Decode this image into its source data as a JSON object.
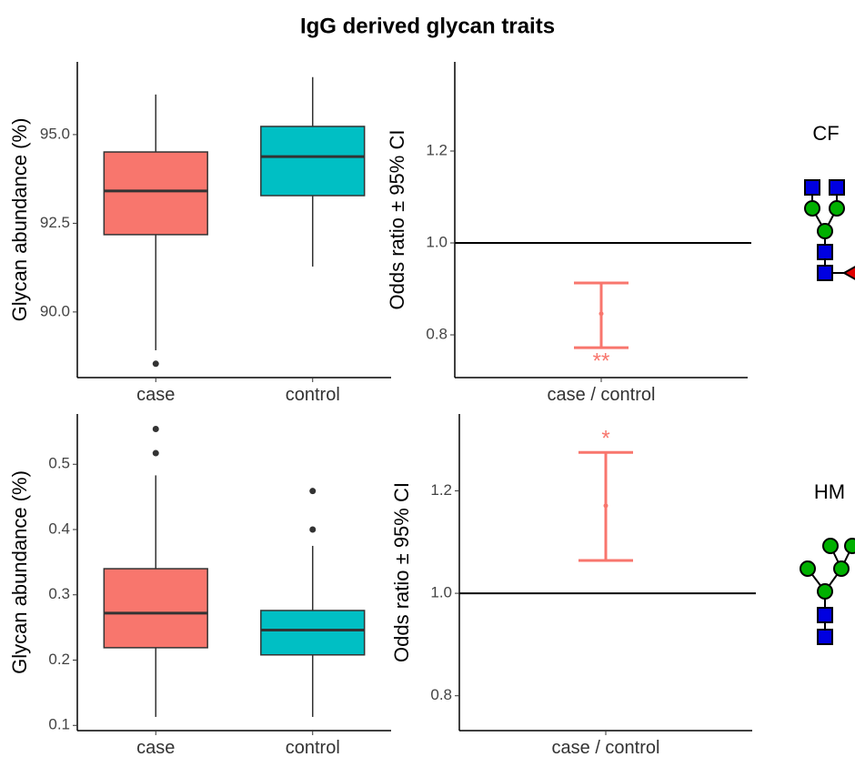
{
  "title": "IgG derived glycan traits",
  "annotations": [
    "CF",
    "HM"
  ],
  "chart_data": [
    {
      "type": "box",
      "ylabel": "Glycan abundance (%)",
      "categories": [
        "case",
        "control"
      ],
      "colors": [
        "#f8766d",
        "#00bfc4"
      ],
      "whisker_low": [
        88.92,
        91.28
      ],
      "q1": [
        92.18,
        93.28
      ],
      "median": [
        93.41,
        94.38
      ],
      "q3": [
        94.51,
        95.23
      ],
      "whisker_high": [
        96.13,
        96.62
      ],
      "outliers": [
        [
          88.54
        ],
        []
      ],
      "ylim": [
        88.15,
        97.05
      ],
      "yticks": [
        {
          "value": 90,
          "label": "90.0"
        },
        92.5,
        {
          "value": 95,
          "label": "95.0"
        }
      ]
    },
    {
      "type": "errorbar",
      "ylabel": "Odds ratio ± 95% CI",
      "categories": [
        "case / control"
      ],
      "color": "#f8766d",
      "values": [
        0.846
      ],
      "lower": [
        0.772
      ],
      "upper": [
        0.913
      ],
      "stars": [
        "**"
      ],
      "reference_line": 1,
      "ylim": [
        0.707,
        1.394
      ],
      "yticks": [
        0.8,
        {
          "value": 1,
          "label": "1.0"
        },
        1.2
      ]
    },
    {
      "type": "box",
      "ylabel": "Glycan abundance (%)",
      "categories": [
        "case",
        "control"
      ],
      "colors": [
        "#f8766d",
        "#00bfc4"
      ],
      "whisker_low": [
        0.113,
        0.113
      ],
      "q1": [
        0.219,
        0.208
      ],
      "median": [
        0.272,
        0.246
      ],
      "q3": [
        0.34,
        0.276
      ],
      "whisker_high": [
        0.483,
        0.375
      ],
      "outliers": [
        [
          0.517,
          0.554
        ],
        [
          0.4,
          0.459
        ]
      ],
      "ylim": [
        0.092,
        0.577
      ],
      "yticks": [
        0.1,
        0.2,
        0.3,
        0.4,
        0.5
      ]
    },
    {
      "type": "errorbar",
      "ylabel": "Odds ratio ± 95% CI",
      "categories": [
        "case / control"
      ],
      "color": "#f8766d",
      "values": [
        1.171
      ],
      "lower": [
        1.064
      ],
      "upper": [
        1.275
      ],
      "stars": [
        "*"
      ],
      "reference_line": 1,
      "ylim": [
        0.732,
        1.35
      ],
      "yticks": [
        0.8,
        {
          "value": 1,
          "label": "1.0"
        },
        1.2
      ]
    }
  ]
}
